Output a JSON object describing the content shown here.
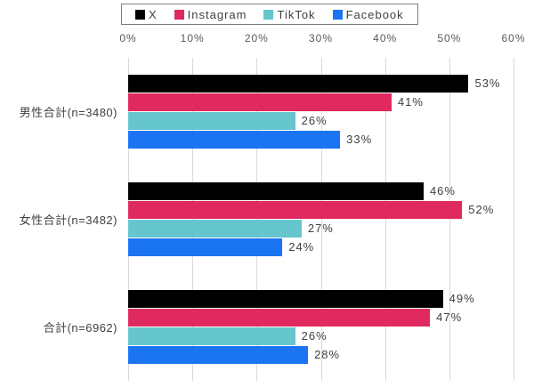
{
  "chart_data": {
    "type": "bar",
    "orientation": "horizontal",
    "title": "",
    "categories": [
      "男性合計(n=3480)",
      "女性合計(n=3482)",
      "合計(n=6962)"
    ],
    "series": [
      {
        "name": "X",
        "color": "#000000",
        "values": [
          53,
          46,
          49
        ]
      },
      {
        "name": "Instagram",
        "color": "#E02A5F",
        "values": [
          41,
          52,
          47
        ]
      },
      {
        "name": "TikTok",
        "color": "#66C6CE",
        "values": [
          26,
          27,
          26
        ]
      },
      {
        "name": "Facebook",
        "color": "#1B74F2",
        "values": [
          33,
          24,
          28
        ]
      }
    ],
    "x_axis": {
      "min": 0,
      "max": 60,
      "step": 10,
      "position": "top",
      "tick_labels": [
        "0%",
        "10%",
        "20%",
        "30%",
        "40%",
        "50%",
        "60%"
      ]
    },
    "data_labels": [
      [
        "53%",
        "46%",
        "49%"
      ],
      [
        "41%",
        "52%",
        "47%"
      ],
      [
        "26%",
        "27%",
        "26%"
      ],
      [
        "33%",
        "24%",
        "28%"
      ]
    ],
    "legend_position": "top",
    "grid": true
  },
  "style": {
    "background": "#FFFFFF",
    "grid_color": "#D9D9D9",
    "tick_label_color": "#595959",
    "category_label_color": "#404040",
    "data_label_color": "#404040",
    "legend_border_color": "#7F7F7F"
  }
}
